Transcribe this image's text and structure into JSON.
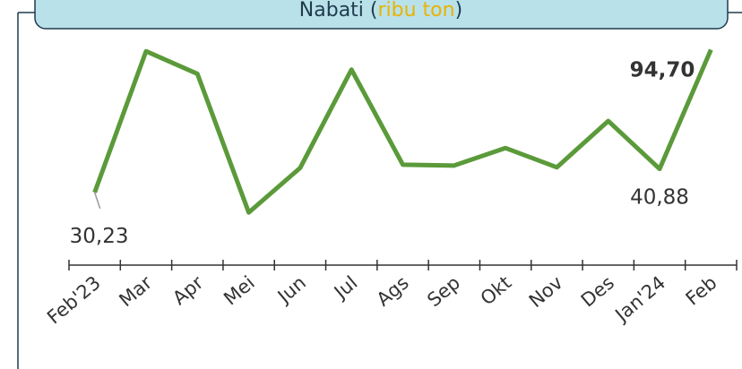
{
  "chart_data": {
    "type": "line",
    "title_parts": [
      "Nabati (",
      "ribu ton",
      ")"
    ],
    "title_colors": [
      "#1f3b4d",
      "#e8b400",
      "#1f3b4d"
    ],
    "categories": [
      "Feb'23",
      "Mar",
      "Apr",
      "Mei",
      "Jun",
      "Jul",
      "Ags",
      "Sep",
      "Okt",
      "Nov",
      "Des",
      "Jan'24",
      "Feb"
    ],
    "series": [
      {
        "color": "#5b9a3a",
        "values": [
          30.23,
          94.0,
          83.8,
          21.2,
          41.3,
          85.7,
          42.8,
          42.4,
          50.3,
          41.6,
          62.5,
          40.88,
          94.7
        ],
        "value_labels": [
          "30,23",
          null,
          null,
          null,
          null,
          null,
          null,
          null,
          null,
          null,
          null,
          "40,88",
          "94,70"
        ]
      }
    ],
    "ylim": [
      12,
      105
    ]
  }
}
